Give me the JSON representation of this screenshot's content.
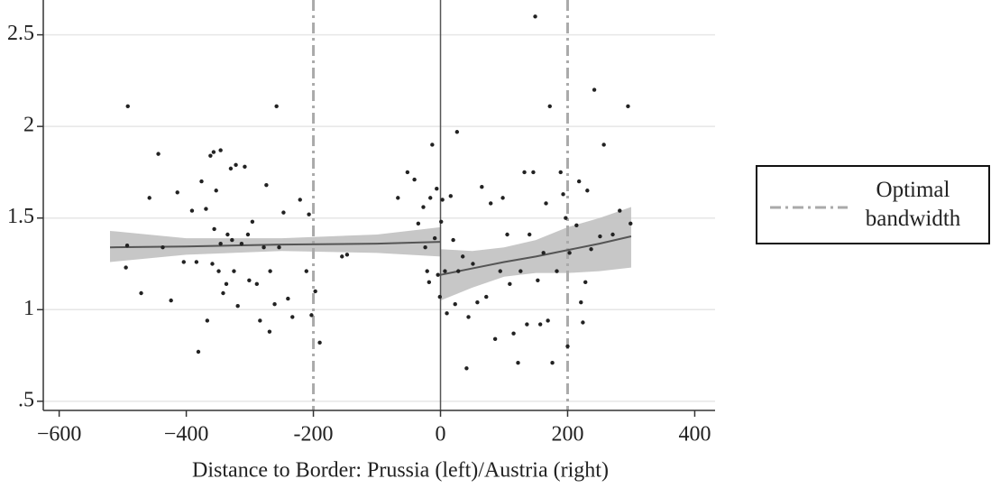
{
  "chart_data": {
    "type": "scatter",
    "xlabel": "Distance to Border: Prussia (left)/Austria (right)",
    "x": [
      -492,
      -493,
      -495,
      -471,
      -458,
      -444,
      -437,
      -424,
      -414,
      -404,
      -391,
      -384,
      -381,
      -376,
      -369,
      -367,
      -362,
      -359,
      -357,
      -353,
      -346,
      -356,
      -349,
      -346,
      -342,
      -337,
      -335,
      -330,
      -328,
      -325,
      -322,
      -319,
      -313,
      -308,
      -303,
      -301,
      -296,
      -289,
      -284,
      -278,
      -274,
      -269,
      -268,
      -261,
      -258,
      -254,
      -247,
      -240,
      -233,
      -221,
      -211,
      -207,
      -203,
      -197,
      -190,
      -155,
      -147,
      -67,
      -52,
      -41,
      -35,
      -27,
      -24,
      -21,
      -18,
      -16,
      -13,
      -9,
      -6,
      -4,
      -1,
      1,
      3,
      7,
      10,
      16,
      20,
      23,
      26,
      28,
      35,
      41,
      44,
      51,
      58,
      65,
      72,
      79,
      86,
      94,
      98,
      105,
      109,
      115,
      122,
      126,
      132,
      136,
      140,
      146,
      149,
      153,
      157,
      162,
      166,
      169,
      172,
      176,
      183,
      189,
      193,
      197,
      200,
      203,
      214,
      218,
      221,
      224,
      228,
      231,
      237,
      242,
      251,
      257,
      271,
      282,
      295,
      299
    ],
    "values": [
      2.11,
      1.35,
      1.23,
      1.09,
      1.61,
      1.85,
      1.34,
      1.05,
      1.64,
      1.26,
      1.54,
      1.26,
      0.77,
      1.7,
      1.55,
      0.94,
      1.84,
      1.25,
      1.86,
      1.65,
      1.87,
      1.44,
      1.21,
      1.36,
      1.09,
      1.14,
      1.41,
      1.77,
      1.38,
      1.21,
      1.79,
      1.02,
      1.36,
      1.78,
      1.41,
      1.16,
      1.48,
      1.14,
      0.94,
      1.34,
      1.68,
      0.88,
      1.21,
      1.03,
      2.11,
      1.34,
      1.53,
      1.06,
      0.96,
      1.6,
      1.21,
      1.52,
      0.97,
      1.1,
      0.82,
      1.29,
      1.3,
      1.61,
      1.75,
      1.71,
      1.47,
      1.56,
      1.34,
      1.21,
      1.15,
      1.61,
      1.9,
      1.39,
      1.66,
      1.19,
      1.07,
      1.48,
      1.6,
      1.21,
      0.98,
      1.62,
      1.38,
      1.03,
      1.97,
      1.21,
      1.29,
      0.68,
      0.96,
      1.25,
      1.04,
      1.67,
      1.07,
      1.58,
      0.84,
      1.21,
      1.61,
      1.41,
      1.14,
      0.87,
      0.71,
      1.21,
      1.75,
      0.92,
      1.41,
      1.75,
      2.6,
      1.16,
      0.92,
      1.31,
      1.58,
      0.94,
      2.11,
      0.71,
      1.21,
      1.75,
      1.63,
      1.5,
      0.8,
      1.31,
      1.46,
      1.7,
      1.04,
      0.93,
      1.15,
      1.65,
      1.33,
      2.2,
      1.4,
      1.9,
      1.41,
      1.54,
      2.11,
      1.47
    ],
    "color": "#222222",
    "fits": [
      {
        "x": [
          -520,
          -400,
          -250,
          -100,
          0
        ],
        "values": [
          1.34,
          1.345,
          1.355,
          1.36,
          1.37
        ],
        "lower": [
          1.26,
          1.3,
          1.32,
          1.31,
          1.29
        ],
        "upper": [
          1.43,
          1.39,
          1.39,
          1.41,
          1.45
        ],
        "color": "#555555",
        "band_color": "#bdbdbd"
      },
      {
        "x": [
          0,
          50,
          100,
          150,
          200,
          250,
          300
        ],
        "values": [
          1.19,
          1.225,
          1.26,
          1.29,
          1.325,
          1.36,
          1.4
        ],
        "lower": [
          1.05,
          1.12,
          1.18,
          1.2,
          1.2,
          1.21,
          1.23
        ],
        "upper": [
          1.33,
          1.32,
          1.34,
          1.38,
          1.45,
          1.5,
          1.56
        ],
        "color": "#555555",
        "band_color": "#bdbdbd"
      }
    ],
    "cutoff": {
      "value": 0,
      "color": "#555555"
    },
    "bandwidth": {
      "name": "Optimal bandwidth",
      "values": [
        -200,
        200
      ],
      "color": "#aaaaaa"
    },
    "xlim": [
      -625,
      432
    ],
    "ylim": [
      0.45,
      2.69
    ],
    "xticks": [
      {
        "value": -600,
        "label": "−600"
      },
      {
        "value": -400,
        "label": "−400"
      },
      {
        "value": -200,
        "label": "-200"
      },
      0,
      200,
      400
    ],
    "yticks": [
      {
        "value": 0.5,
        "label": ".5"
      },
      1,
      1.5,
      2,
      2.5
    ],
    "grid": true,
    "legend": "right"
  }
}
